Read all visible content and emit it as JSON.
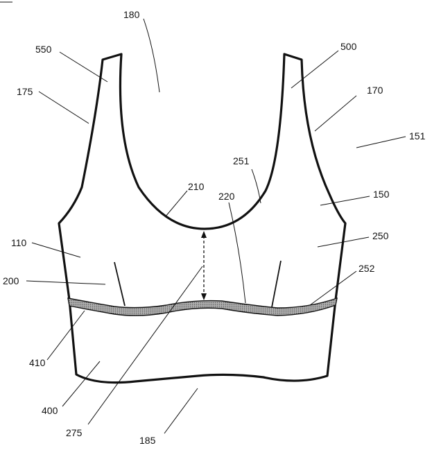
{
  "figure": {
    "labels": {
      "l180": "180",
      "l550": "550",
      "l500": "500",
      "l175": "175",
      "l170": "170",
      "l151": "151",
      "l251": "251",
      "l210": "210",
      "l220": "220",
      "l150": "150",
      "l110": "110",
      "l250": "250",
      "l252": "252",
      "l200": "200",
      "l410": "410",
      "l400": "400",
      "l275": "275",
      "l185": "185"
    },
    "colors": {
      "outline": "#111111",
      "band_fill": "#b0b0b0"
    }
  }
}
